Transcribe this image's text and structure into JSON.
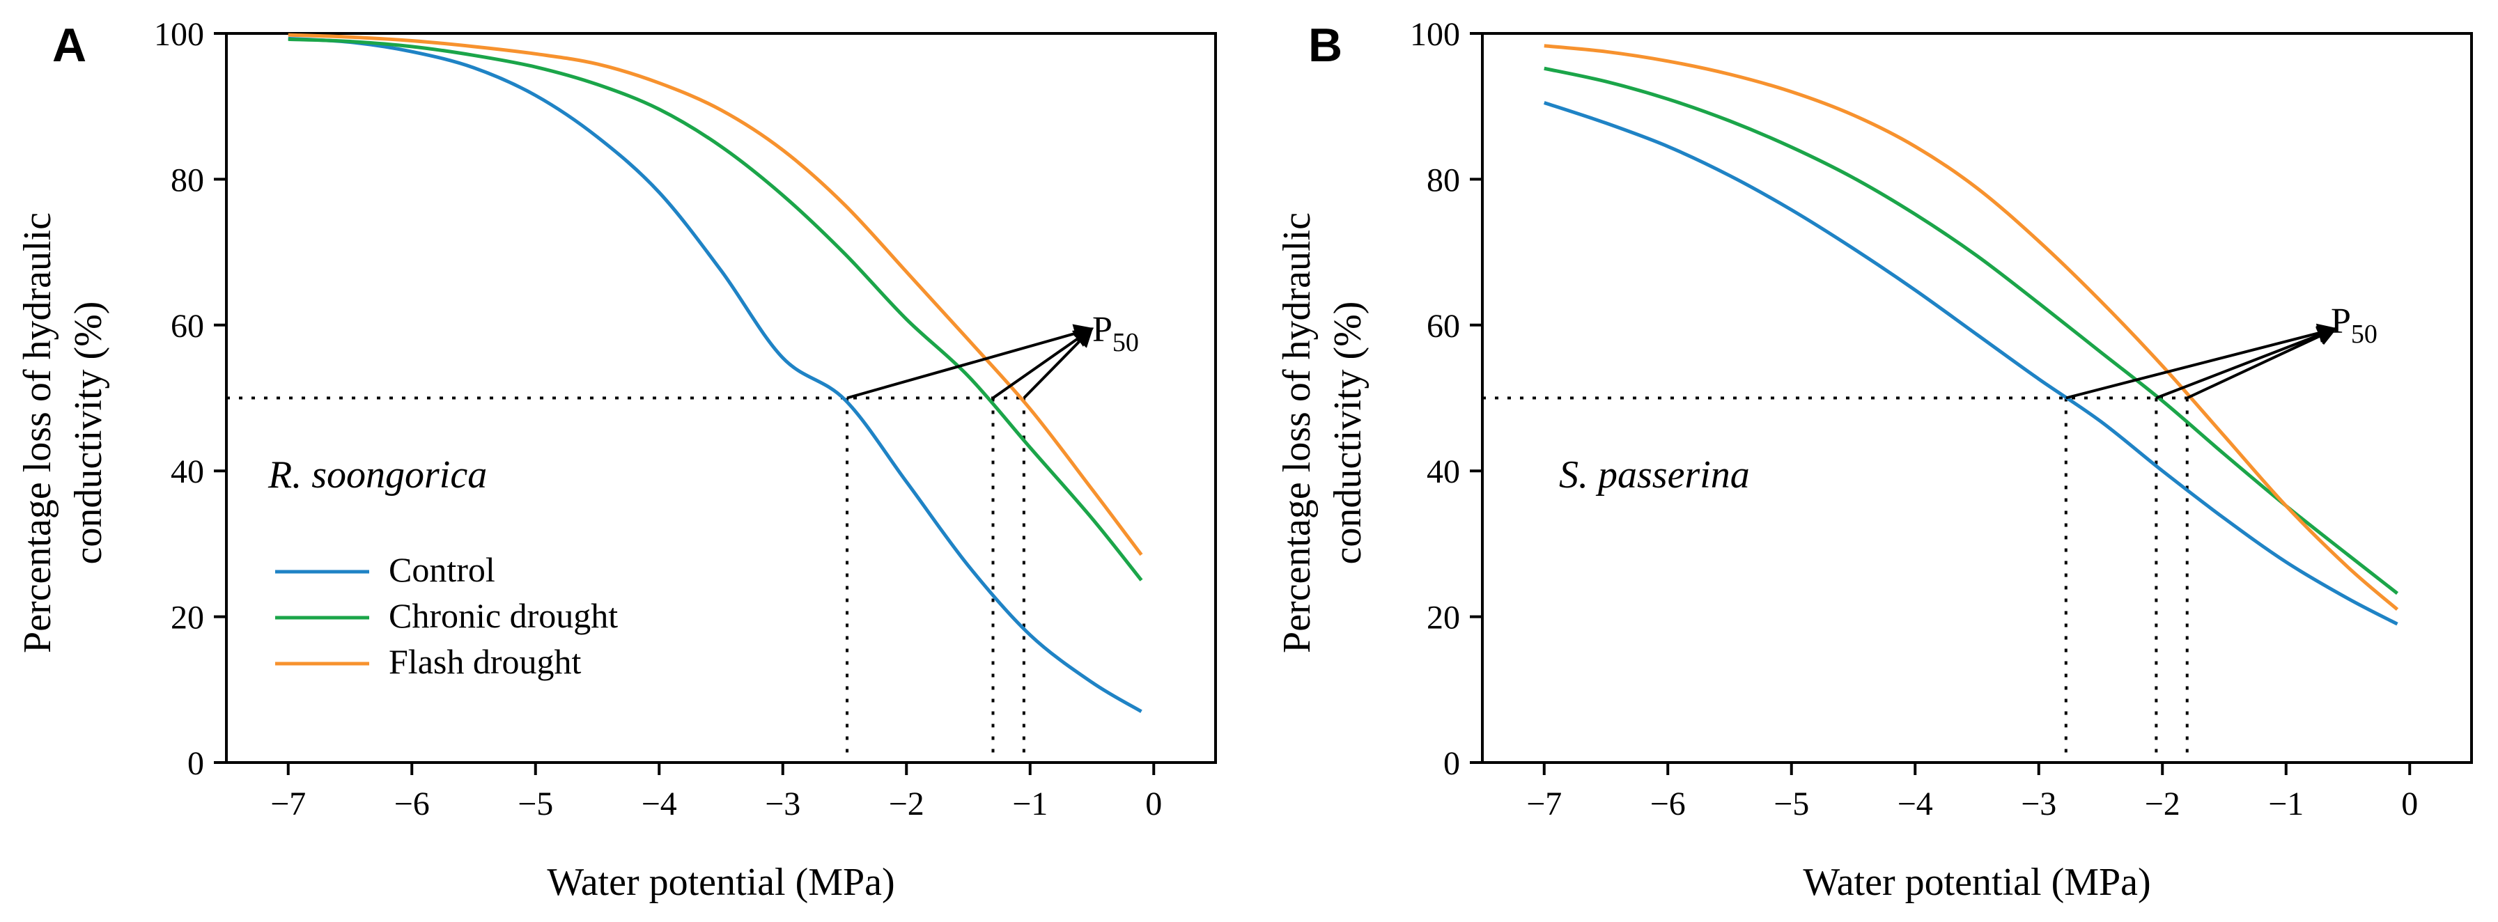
{
  "figure": {
    "p50_label": {
      "base": "P",
      "sub": "50"
    }
  },
  "legend": [
    {
      "name": "Control",
      "color": "#1f83c5"
    },
    {
      "name": "Chronic drought",
      "color": "#1ba549"
    },
    {
      "name": "Flash drought",
      "color": "#f7922e"
    }
  ],
  "chart_data": [
    {
      "type": "line",
      "panel_label": "A",
      "species": "R. soongorica",
      "xlabel": "Water potential (MPa)",
      "ylabel_line1": "Percentage loss of hydraulic",
      "ylabel_line2": "conductivity (%)",
      "xlim": [
        -7.5,
        0.5
      ],
      "ylim": [
        0,
        100
      ],
      "xticks": [
        -7,
        -6,
        -5,
        -4,
        -3,
        -2,
        -1,
        0
      ],
      "xtick_labels": [
        "−7",
        "−6",
        "−5",
        "−4",
        "−3",
        "−2",
        "−1",
        "0"
      ],
      "yticks": [
        0,
        20,
        40,
        60,
        80,
        100
      ],
      "ytick_labels": [
        "0",
        "20",
        "40",
        "60",
        "80",
        "100"
      ],
      "show_legend": true,
      "p50_arrow_target": {
        "x": -0.5,
        "y": 59.5
      },
      "series": [
        {
          "name": "Control",
          "color": "#1f83c5",
          "p50": -2.48,
          "x": [
            -7,
            -6.5,
            -6,
            -5.5,
            -5,
            -4.5,
            -4,
            -3.5,
            -3,
            -2.5,
            -2,
            -1.5,
            -1,
            -0.5,
            -0.1
          ],
          "y": [
            99.3,
            98.8,
            97.5,
            95.3,
            91.5,
            85.8,
            78.2,
            67.5,
            55.5,
            49.8,
            38.5,
            27.0,
            17.5,
            11.0,
            7.0
          ]
        },
        {
          "name": "Chronic drought",
          "color": "#1ba549",
          "p50": -1.3,
          "x": [
            -7,
            -6.5,
            -6,
            -5.5,
            -5,
            -4.5,
            -4,
            -3.5,
            -3,
            -2.5,
            -2,
            -1.5,
            -1,
            -0.5,
            -0.1
          ],
          "y": [
            99.2,
            98.9,
            98.2,
            97.0,
            95.4,
            93.0,
            89.6,
            84.5,
            77.8,
            69.8,
            60.8,
            53.0,
            43.2,
            33.5,
            25.0
          ]
        },
        {
          "name": "Flash drought",
          "color": "#f7922e",
          "p50": -1.05,
          "x": [
            -7,
            -6.5,
            -6,
            -5.5,
            -5,
            -4.5,
            -4,
            -3.5,
            -3,
            -2.5,
            -2,
            -1.5,
            -1,
            -0.5,
            -0.1
          ],
          "y": [
            99.8,
            99.5,
            99.0,
            98.2,
            97.2,
            95.8,
            93.2,
            89.5,
            84.0,
            76.5,
            67.3,
            58.0,
            48.5,
            37.5,
            28.5
          ]
        }
      ]
    },
    {
      "type": "line",
      "panel_label": "B",
      "species": "S. passerina",
      "xlabel": "Water potential (MPa)",
      "ylabel_line1": "Percentage loss of hydraulic",
      "ylabel_line2": "conductivity (%)",
      "xlim": [
        -7.5,
        0.5
      ],
      "ylim": [
        0,
        100
      ],
      "xticks": [
        -7,
        -6,
        -5,
        -4,
        -3,
        -2,
        -1,
        0
      ],
      "xtick_labels": [
        "−7",
        "−6",
        "−5",
        "−4",
        "−3",
        "−2",
        "−1",
        "0"
      ],
      "yticks": [
        0,
        20,
        40,
        60,
        80,
        100
      ],
      "ytick_labels": [
        "0",
        "20",
        "40",
        "60",
        "80",
        "100"
      ],
      "show_legend": false,
      "p50_arrow_target": {
        "x": -0.6,
        "y": 59.5
      },
      "series": [
        {
          "name": "Control",
          "color": "#1f83c5",
          "p50": -2.78,
          "x": [
            -7,
            -6.5,
            -6,
            -5.5,
            -5,
            -4.5,
            -4,
            -3.5,
            -3,
            -2.5,
            -2,
            -1.5,
            -1,
            -0.5,
            -0.1
          ],
          "y": [
            90.5,
            87.7,
            84.5,
            80.5,
            75.8,
            70.5,
            64.8,
            58.7,
            52.6,
            46.8,
            40.0,
            33.5,
            27.5,
            22.5,
            19.0
          ]
        },
        {
          "name": "Chronic drought",
          "color": "#1ba549",
          "p50": -2.05,
          "x": [
            -7,
            -6.5,
            -6,
            -5.5,
            -5,
            -4.5,
            -4,
            -3.5,
            -3,
            -2.5,
            -2,
            -1.5,
            -1,
            -0.5,
            -0.1
          ],
          "y": [
            95.2,
            93.4,
            91.0,
            88.0,
            84.4,
            80.2,
            75.2,
            69.5,
            63.0,
            56.3,
            49.6,
            42.3,
            35.2,
            28.5,
            23.2
          ]
        },
        {
          "name": "Flash drought",
          "color": "#f7922e",
          "p50": -1.8,
          "x": [
            -7,
            -6.5,
            -6,
            -5.5,
            -5,
            -4.5,
            -4,
            -3.5,
            -3,
            -2.5,
            -2,
            -1.5,
            -1,
            -0.5,
            -0.1
          ],
          "y": [
            98.3,
            97.5,
            96.2,
            94.4,
            92.0,
            88.8,
            84.5,
            78.8,
            71.5,
            63.3,
            54.4,
            44.8,
            35.2,
            26.8,
            21.0
          ]
        }
      ]
    }
  ]
}
